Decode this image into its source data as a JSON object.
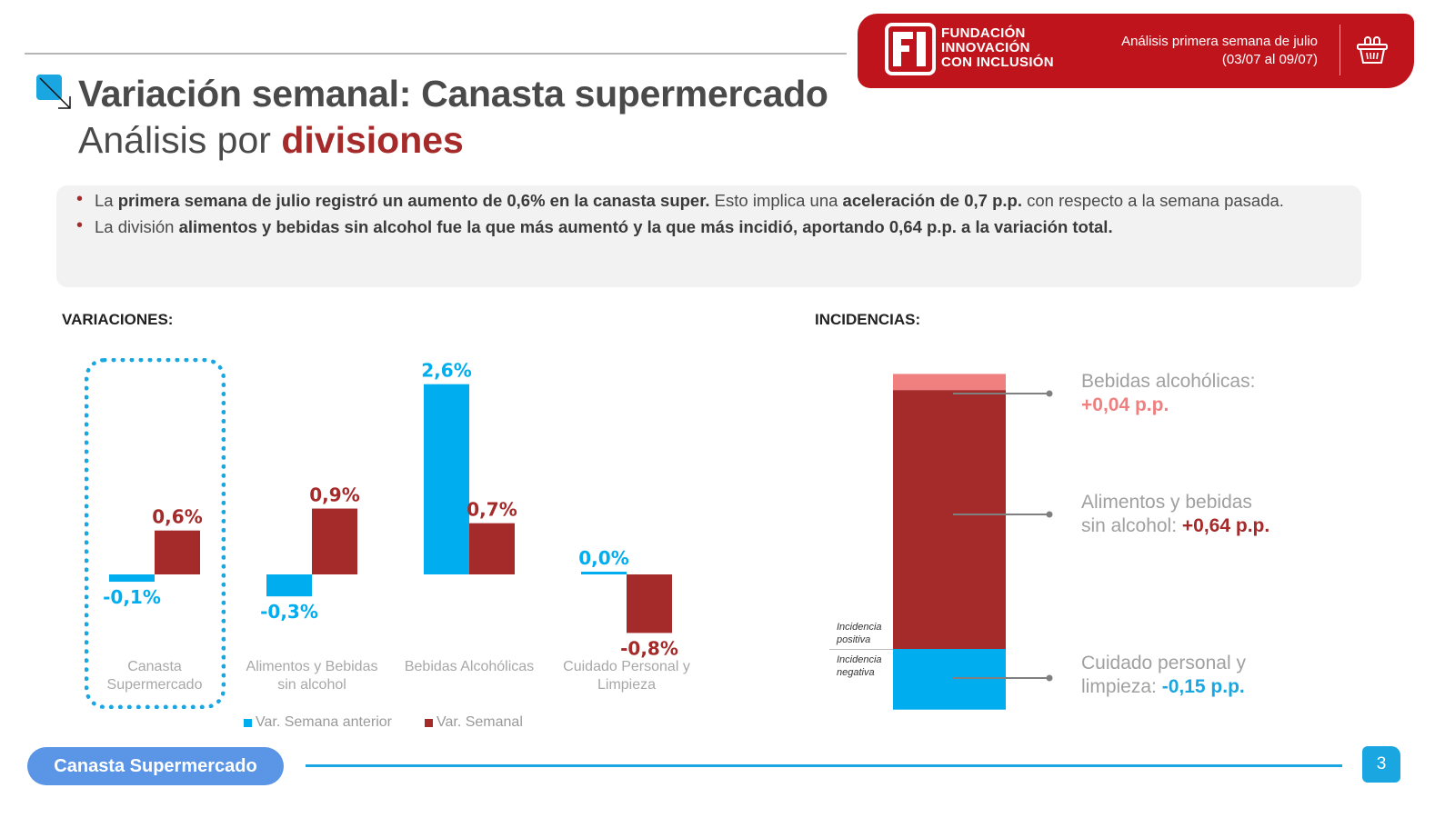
{
  "header": {
    "brand_lines": [
      "FUNDACIÓN",
      "INNOVACIÓN",
      "CON INCLUSIÓN"
    ],
    "brand_logo_text": "FI",
    "period_line1": "Análisis primera semana de julio",
    "period_line2": "(03/07 al 09/07)",
    "icon": "basket-icon",
    "brand_color": "#c0141c"
  },
  "title": {
    "line1": "Variación semanal: Canasta supermercado",
    "line2_prefix": "Análisis por ",
    "line2_accent": "divisiones"
  },
  "summary": {
    "bullet1": [
      {
        "t": "La ",
        "b": false
      },
      {
        "t": "primera semana de julio registró un aumento de 0,6% en la canasta super.",
        "b": true
      },
      {
        "t": " Esto implica una ",
        "b": false
      },
      {
        "t": "aceleración de 0,7 p.p.",
        "b": true
      },
      {
        "t": " con respecto a la semana pasada.",
        "b": false
      }
    ],
    "bullet2": [
      {
        "t": "La división ",
        "b": false
      },
      {
        "t": "alimentos y bebidas sin alcohol fue la que más aumentó y la que más incidió, aportando 0,64 p.p. a la variación total.",
        "b": true
      }
    ]
  },
  "sections": {
    "variaciones": "VARIACIONES:",
    "incidencias": "INCIDENCIAS:"
  },
  "colors": {
    "prev_week": "#00adef",
    "weekly": "#a52a2a",
    "alcohol_incidence": "#f08080",
    "accent_text": "#a52a2a"
  },
  "chart_data": [
    {
      "type": "bar",
      "title": "VARIACIONES:",
      "categories": [
        "Canasta Supermercado",
        "Alimentos y Bebidas sin alcohol",
        "Bebidas Alcohólicas",
        "Cuidado Personal y Limpieza"
      ],
      "category_lines": [
        [
          "Canasta",
          "Supermercado"
        ],
        [
          "Alimentos y Bebidas",
          "sin alcohol"
        ],
        [
          "Bebidas Alcohólicas"
        ],
        [
          "Cuidado Personal y",
          "Limpieza"
        ]
      ],
      "series": [
        {
          "name": "Var. Semana anterior",
          "values": [
            -0.1,
            -0.3,
            2.6,
            0.0
          ],
          "labels": [
            "-0,1%",
            "-0,3%",
            "2,6%",
            "0,0%"
          ],
          "color": "#00adef"
        },
        {
          "name": "Var. Semanal",
          "values": [
            0.6,
            0.9,
            0.7,
            -0.8
          ],
          "labels": [
            "0,6%",
            "0,9%",
            "0,7%",
            "-0,8%"
          ],
          "color": "#a52a2a"
        }
      ],
      "highlighted_category": "Canasta Supermercado",
      "legend": "bottom",
      "grid": false,
      "ylim": [
        -1.0,
        2.8
      ]
    },
    {
      "type": "bar",
      "subtype": "stacked",
      "title": "INCIDENCIAS:",
      "unit": "p.p.",
      "segments": [
        {
          "name": "Bebidas alcohólicas",
          "value": 0.04,
          "label": "+0,04 p.p.",
          "color": "#f08080",
          "caption": "Bebidas alcohólicas:"
        },
        {
          "name": "Alimentos y bebidas sin alcohol",
          "value": 0.64,
          "label": "+0,64 p.p.",
          "color": "#a52a2a",
          "caption": "Alimentos y bebidas sin alcohol:"
        },
        {
          "name": "Cuidado personal y limpieza",
          "value": -0.15,
          "label": "-0,15 p.p.",
          "color": "#00adef",
          "caption": "Cuidado personal y limpieza:"
        }
      ],
      "axis_labels": {
        "positive": [
          "Incidencia",
          "positiva"
        ],
        "negative": [
          "Incidencia",
          "negativa"
        ]
      }
    }
  ],
  "callouts": {
    "alcohol_l1": "Bebidas alcohólicas:",
    "alcohol_value": "+0,04 p.p.",
    "food_l1": "Alimentos y bebidas",
    "food_l2": "sin alcohol: ",
    "food_value": "+0,64 p.p.",
    "care_l1": "Cuidado personal y",
    "care_l2": "limpieza: ",
    "care_value": "-0,15 p.p."
  },
  "footer": {
    "section_label": "Canasta Supermercado",
    "page_number": "3"
  }
}
